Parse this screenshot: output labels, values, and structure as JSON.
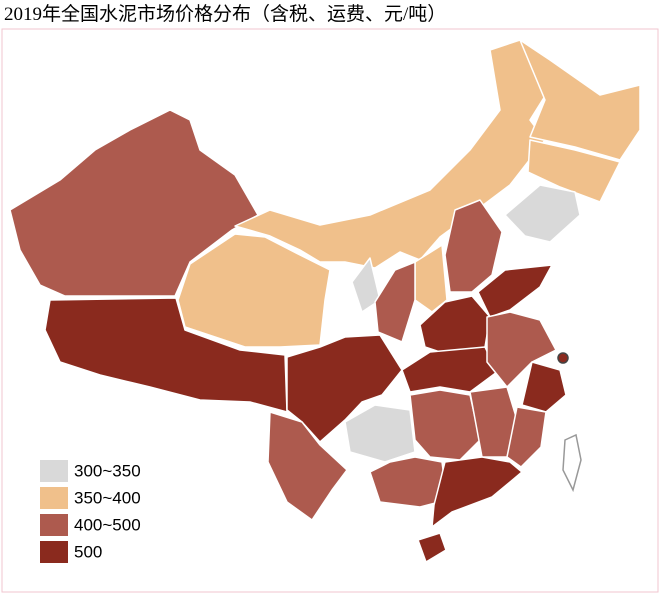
{
  "header": {
    "title": "2019年全国水泥市场价格分布（含税、运费、元/吨）"
  },
  "legend": {
    "items": [
      {
        "label": "300~350",
        "color": "#d9d9d9"
      },
      {
        "label": "350~400",
        "color": "#f0c08b"
      },
      {
        "label": "400~500",
        "color": "#ad5a4e"
      },
      {
        "label": "500",
        "color": "#8a2a1e"
      }
    ]
  }
}
